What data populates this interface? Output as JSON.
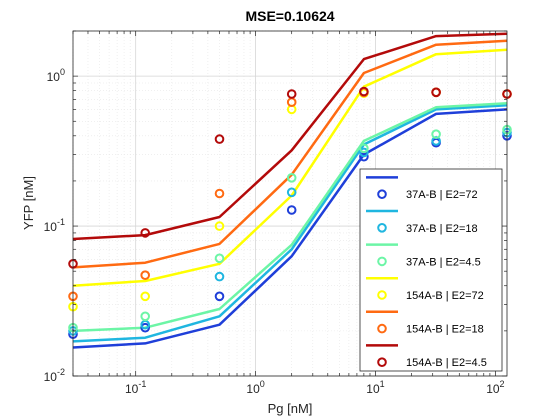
{
  "chart_data": {
    "type": "line",
    "title": "MSE=0.10624",
    "xlabel": "Pg [nM]",
    "ylabel": "YFP [nM]",
    "xscale": "log",
    "yscale": "log",
    "xlim": [
      0.03,
      125
    ],
    "ylim": [
      0.01,
      2.0
    ],
    "grid": true,
    "legend_position": "bottom-right",
    "x_ticks": [
      {
        "value": 0.1,
        "base": "10",
        "exp": "-1"
      },
      {
        "value": 1,
        "base": "10",
        "exp": "0"
      },
      {
        "value": 10,
        "base": "10",
        "exp": "1"
      },
      {
        "value": 100,
        "base": "10",
        "exp": "2"
      }
    ],
    "y_ticks": [
      {
        "value": 0.01,
        "base": "10",
        "exp": "-2"
      },
      {
        "value": 0.1,
        "base": "10",
        "exp": "-1"
      },
      {
        "value": 1,
        "base": "10",
        "exp": "0"
      }
    ],
    "x": [
      0.03,
      0.12,
      0.5,
      2,
      8,
      32,
      125
    ],
    "series": [
      {
        "name": "37A-B | E2=72",
        "color": "#1f3fd9",
        "fit": [
          0.0155,
          0.0165,
          0.022,
          0.063,
          0.3,
          0.56,
          0.6
        ],
        "data": [
          0.019,
          0.021,
          0.034,
          0.128,
          0.29,
          0.36,
          0.4
        ]
      },
      {
        "name": "37A-B | E2=18",
        "color": "#1fb6e0",
        "fit": [
          0.017,
          0.018,
          0.025,
          0.07,
          0.35,
          0.6,
          0.64
        ],
        "data": [
          0.02,
          0.022,
          0.046,
          0.168,
          0.31,
          0.37,
          0.42
        ]
      },
      {
        "name": "37A-B | E2=4.5",
        "color": "#6cf5a6",
        "fit": [
          0.02,
          0.021,
          0.028,
          0.075,
          0.37,
          0.62,
          0.66
        ],
        "data": [
          0.021,
          0.025,
          0.061,
          0.21,
          0.33,
          0.41,
          0.44
        ]
      },
      {
        "name": "154A-B | E2=72",
        "color": "#ffff00",
        "fit": [
          0.04,
          0.043,
          0.056,
          0.16,
          0.85,
          1.4,
          1.5
        ],
        "data": [
          0.029,
          0.034,
          0.1,
          0.6,
          0.77,
          0.78,
          0.76
        ]
      },
      {
        "name": "154A-B | E2=18",
        "color": "#ff6a12",
        "fit": [
          0.053,
          0.057,
          0.076,
          0.22,
          1.05,
          1.62,
          1.72
        ],
        "data": [
          0.034,
          0.047,
          0.165,
          0.67,
          0.78,
          0.78,
          0.76
        ]
      },
      {
        "name": "154A-B | E2=4.5",
        "color": "#b30a0a",
        "fit": [
          0.082,
          0.087,
          0.115,
          0.32,
          1.3,
          1.85,
          1.92
        ],
        "data": [
          0.056,
          0.09,
          0.38,
          0.76,
          0.79,
          0.78,
          0.76
        ]
      }
    ]
  }
}
